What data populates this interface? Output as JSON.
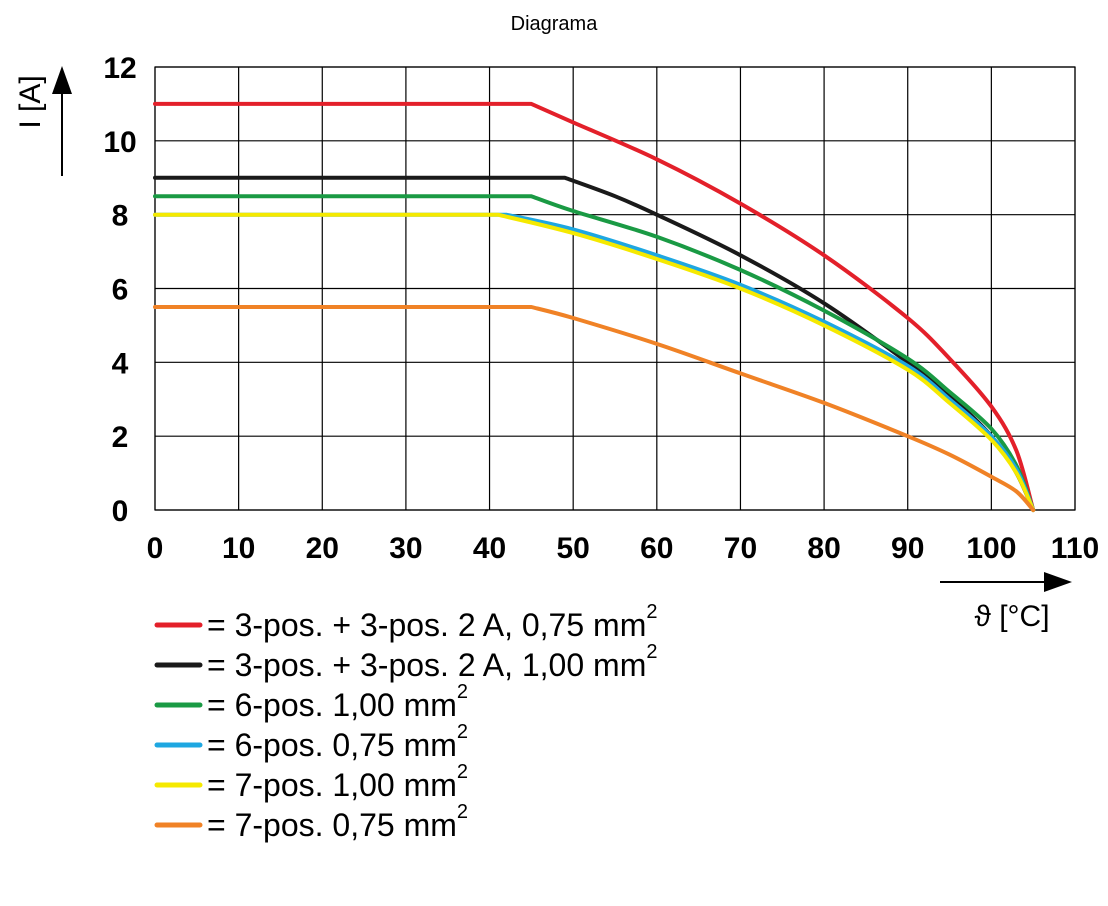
{
  "chart_data": {
    "type": "line",
    "title": "Diagrama",
    "xlabel": "ϑ [°C]",
    "ylabel": "I [A]",
    "xlim": [
      0,
      110
    ],
    "ylim": [
      0,
      12
    ],
    "xticks": [
      0,
      10,
      20,
      30,
      40,
      50,
      60,
      70,
      80,
      90,
      100,
      110
    ],
    "yticks": [
      0,
      2,
      4,
      6,
      8,
      10,
      12
    ],
    "grid": true,
    "legend_position": "below",
    "series": [
      {
        "name": "= 3-pos. + 3-pos. 2 A, 0,75 mm",
        "sup": "2",
        "color": "#e3202a",
        "x": [
          0,
          45,
          50,
          60,
          70,
          80,
          90,
          95,
          100,
          103,
          105
        ],
        "y": [
          11,
          11,
          10.5,
          9.5,
          8.3,
          6.9,
          5.2,
          4.1,
          2.8,
          1.6,
          0
        ]
      },
      {
        "name": "= 3-pos. + 3-pos. 2 A, 1,00 mm",
        "sup": "2",
        "color": "#1a1a1a",
        "x": [
          0,
          49,
          55,
          60,
          70,
          80,
          90,
          95,
          100,
          103,
          105
        ],
        "y": [
          9,
          9,
          8.5,
          8,
          6.9,
          5.6,
          4,
          3.1,
          2,
          1,
          0
        ]
      },
      {
        "name": "= 6-pos. 1,00 mm",
        "sup": "2",
        "color": "#1a9a44",
        "x": [
          0,
          45,
          50,
          60,
          70,
          80,
          90,
          95,
          100,
          103,
          105
        ],
        "y": [
          8.5,
          8.5,
          8.1,
          7.4,
          6.5,
          5.4,
          4.1,
          3.2,
          2.2,
          1.2,
          0
        ]
      },
      {
        "name": "= 6-pos. 0,75 mm",
        "sup": "2",
        "color": "#1ea7e1",
        "x": [
          0,
          42,
          50,
          60,
          70,
          80,
          90,
          95,
          100,
          103,
          105
        ],
        "y": [
          8,
          8,
          7.6,
          6.9,
          6.1,
          5.1,
          3.9,
          3,
          2,
          1.1,
          0
        ]
      },
      {
        "name": "= 7-pos. 1,00 mm",
        "sup": "2",
        "color": "#f5e900",
        "x": [
          0,
          41,
          50,
          60,
          70,
          80,
          90,
          95,
          100,
          103,
          105
        ],
        "y": [
          8,
          8,
          7.5,
          6.8,
          6,
          5,
          3.8,
          2.9,
          1.9,
          1,
          0
        ]
      },
      {
        "name": "= 7-pos. 0,75 mm",
        "sup": "2",
        "color": "#f08226",
        "x": [
          0,
          45,
          50,
          60,
          70,
          80,
          90,
          95,
          100,
          103,
          105
        ],
        "y": [
          5.5,
          5.5,
          5.2,
          4.5,
          3.7,
          2.9,
          2,
          1.5,
          0.9,
          0.5,
          0
        ]
      }
    ]
  }
}
